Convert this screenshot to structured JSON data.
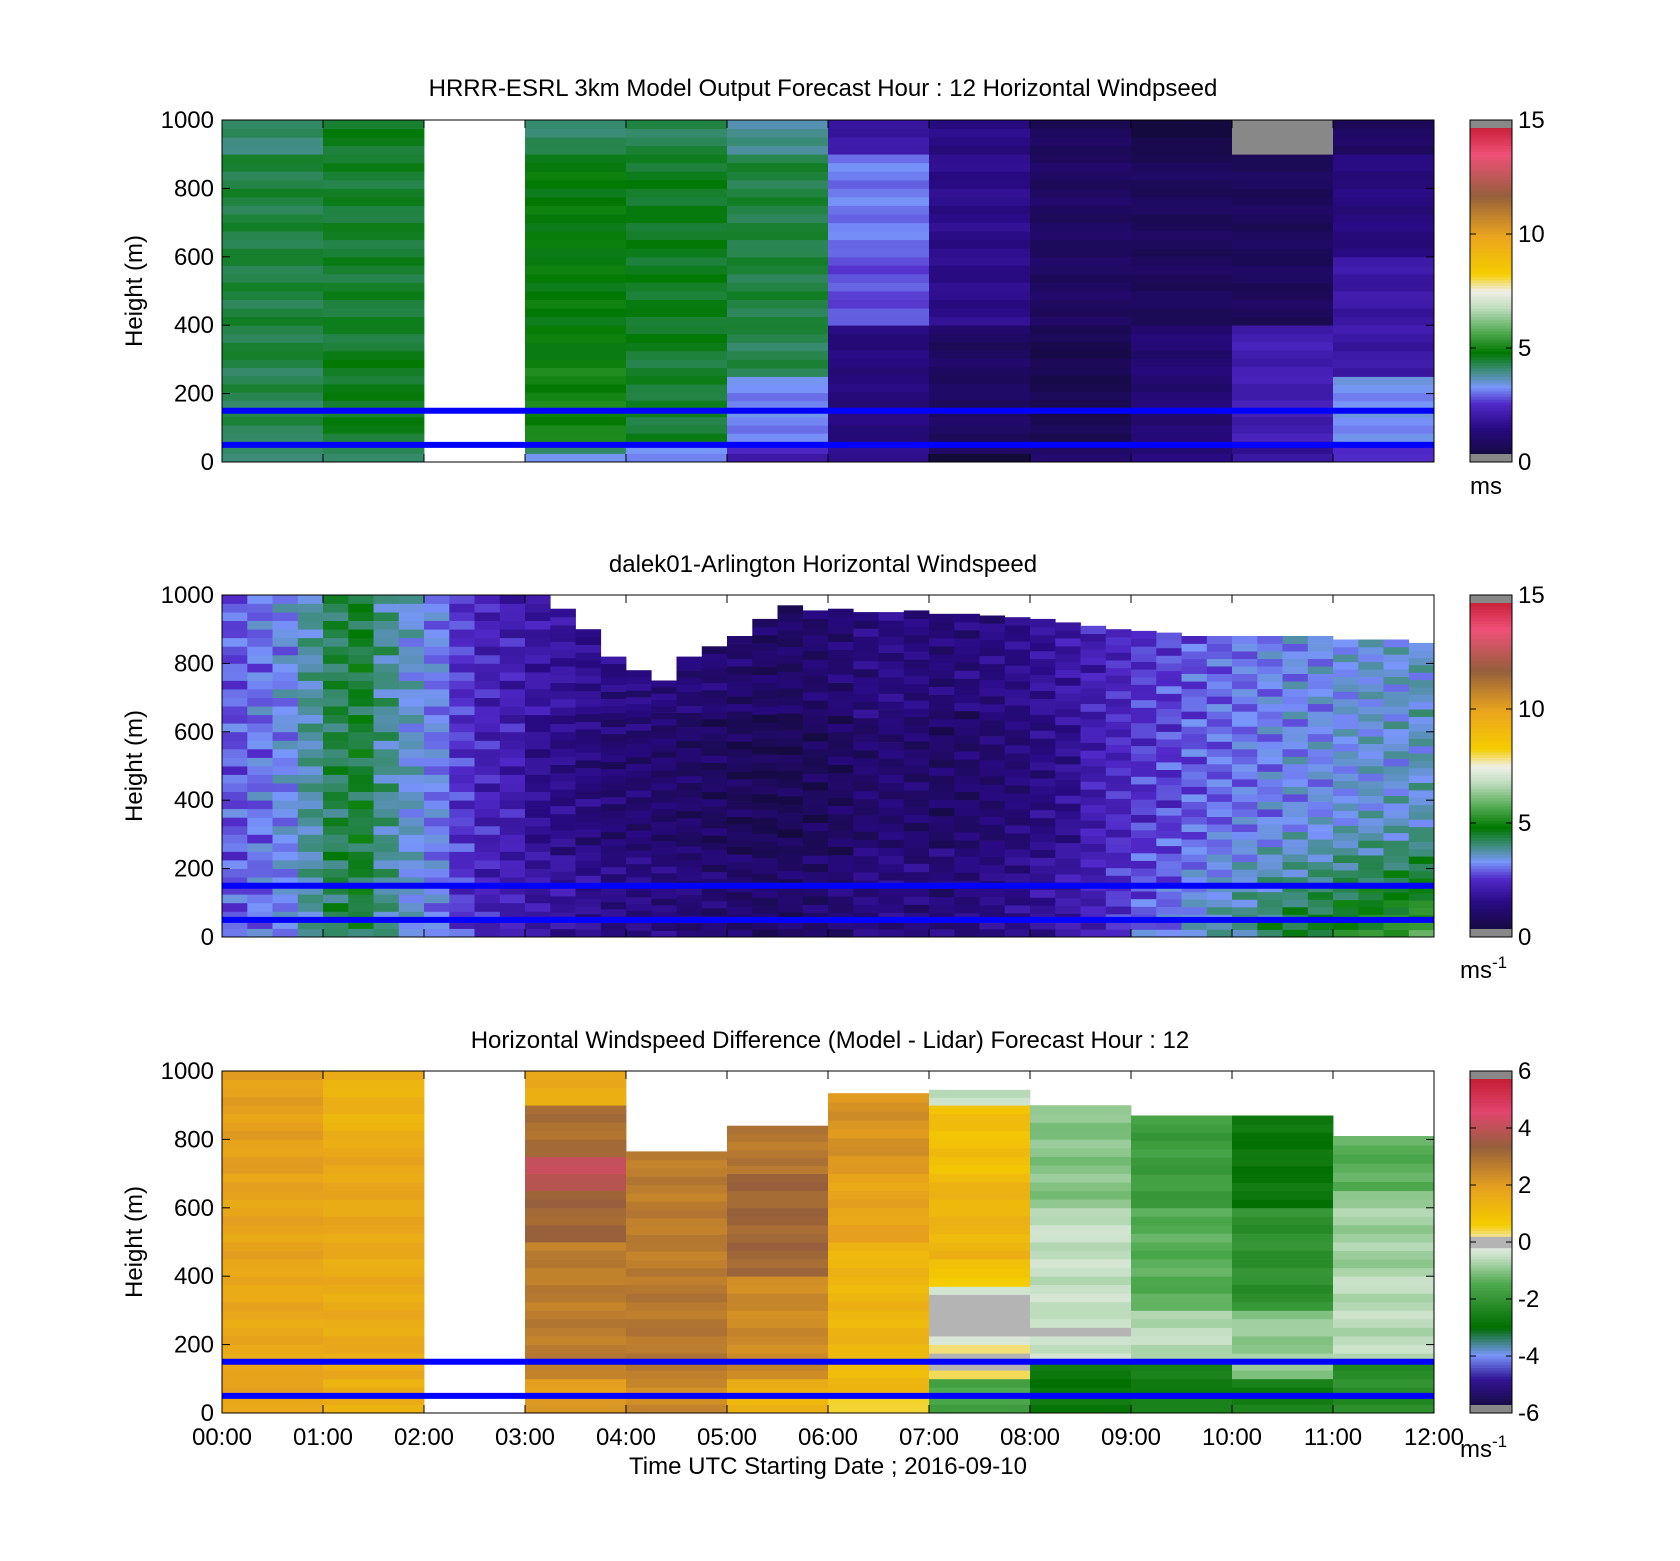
{
  "chart_data": [
    {
      "type": "heatmap",
      "title": "HRRR-ESRL 3km Model Output   Forecast Hour : 12 Horizontal Windpseed",
      "xlabel": "",
      "ylabel": "Height (m)",
      "xlim": [
        0,
        12
      ],
      "ylim": [
        0,
        1000
      ],
      "yticks": [
        "0",
        "200",
        "400",
        "600",
        "800",
        "1000"
      ],
      "x_tick_labels": [],
      "colorbar": {
        "ticks": [
          "0",
          "5",
          "10",
          "15"
        ],
        "min": 0,
        "max": 15,
        "unit": "ms"
      },
      "reference_lines_m": [
        150,
        50
      ],
      "reference_line_color": "#0000ff",
      "segments": [
        {
          "x0": 0,
          "x1": 1,
          "cells": [
            [
              25,
              4.2
            ],
            [
              60,
              4.0
            ],
            [
              300,
              4.3
            ],
            [
              900,
              4.4
            ],
            [
              1000,
              4.1
            ]
          ]
        },
        {
          "x0": 1,
          "x1": 2,
          "cells": [
            [
              25,
              4.3
            ],
            [
              60,
              4.1
            ],
            [
              300,
              4.6
            ],
            [
              900,
              4.5
            ],
            [
              1000,
              4.6
            ]
          ]
        },
        {
          "x0": 2,
          "x1": 3,
          "cells": []
        },
        {
          "x0": 3,
          "x1": 4,
          "cells": [
            [
              25,
              3.2
            ],
            [
              60,
              4.3
            ],
            [
              300,
              5.0
            ],
            [
              900,
              4.8
            ],
            [
              1000,
              4.2
            ]
          ]
        },
        {
          "x0": 4,
          "x1": 5,
          "cells": [
            [
              25,
              3.0
            ],
            [
              60,
              3.5
            ],
            [
              300,
              4.5
            ],
            [
              900,
              4.6
            ],
            [
              1000,
              4.3
            ]
          ]
        },
        {
          "x0": 5,
          "x1": 6,
          "cells": [
            [
              25,
              2.0
            ],
            [
              60,
              2.5
            ],
            [
              250,
              3.2
            ],
            [
              400,
              4.3
            ],
            [
              900,
              4.4
            ],
            [
              1000,
              3.9
            ]
          ]
        },
        {
          "x0": 6,
          "x1": 7,
          "cells": [
            [
              25,
              1.8
            ],
            [
              60,
              1.6
            ],
            [
              400,
              1.4
            ],
            [
              600,
              2.8
            ],
            [
              900,
              3.1
            ],
            [
              1000,
              2.0
            ]
          ]
        },
        {
          "x0": 7,
          "x1": 8,
          "cells": [
            [
              25,
              0.3
            ],
            [
              60,
              0.8
            ],
            [
              400,
              0.9
            ],
            [
              900,
              1.6
            ],
            [
              1000,
              1.5
            ]
          ]
        },
        {
          "x0": 8,
          "x1": 9,
          "cells": [
            [
              25,
              1.2
            ],
            [
              60,
              0.9
            ],
            [
              400,
              0.6
            ],
            [
              900,
              0.9
            ],
            [
              1000,
              0.8
            ]
          ]
        },
        {
          "x0": 9,
          "x1": 10,
          "cells": [
            [
              25,
              1.4
            ],
            [
              60,
              1.3
            ],
            [
              400,
              1.2
            ],
            [
              900,
              0.8
            ],
            [
              1000,
              0.4
            ]
          ]
        },
        {
          "x0": 10,
          "x1": 11,
          "cells": [
            [
              25,
              1.8
            ],
            [
              60,
              1.9
            ],
            [
              400,
              2.2
            ],
            [
              900,
              0.8
            ],
            [
              1000,
              15.5
            ]
          ]
        },
        {
          "x0": 11,
          "x1": 12,
          "cells": [
            [
              25,
              2.5
            ],
            [
              60,
              2.6
            ],
            [
              250,
              3.3
            ],
            [
              600,
              2.0
            ],
            [
              900,
              1.4
            ],
            [
              1000,
              0.9
            ]
          ]
        }
      ]
    },
    {
      "type": "heatmap",
      "title": "dalek01-Arlington  Horizontal Windspeed",
      "xlabel": "",
      "ylabel": "Height (m)",
      "xlim": [
        0,
        12
      ],
      "ylim": [
        0,
        1000
      ],
      "yticks": [
        "0",
        "200",
        "400",
        "600",
        "800",
        "1000"
      ],
      "x_tick_labels": [],
      "colorbar": {
        "ticks": [
          "0",
          "5",
          "10",
          "15"
        ],
        "min": 0,
        "max": 15,
        "unit": "ms",
        "unit_sup": "-1"
      },
      "reference_lines_m": [
        150,
        50
      ],
      "reference_line_color": "#0000ff",
      "columns": [
        {
          "x": 0.125,
          "top": 1000,
          "v": 2.9
        },
        {
          "x": 0.375,
          "top": 1000,
          "v": 3.1
        },
        {
          "x": 0.625,
          "top": 1000,
          "v": 3.3
        },
        {
          "x": 0.875,
          "top": 1000,
          "v": 3.8
        },
        {
          "x": 1.125,
          "top": 1000,
          "v": 4.3
        },
        {
          "x": 1.375,
          "top": 1000,
          "v": 4.5
        },
        {
          "x": 1.625,
          "top": 1000,
          "v": 3.9
        },
        {
          "x": 1.875,
          "top": 1000,
          "v": 3.5
        },
        {
          "x": 2.125,
          "top": 1000,
          "v": 3.2
        },
        {
          "x": 2.375,
          "top": 1000,
          "v": 2.6
        },
        {
          "x": 2.625,
          "top": 1000,
          "v": 2.3
        },
        {
          "x": 2.875,
          "top": 1000,
          "v": 2.2
        },
        {
          "x": 3.125,
          "top": 1000,
          "v": 2.0
        },
        {
          "x": 3.375,
          "top": 960,
          "v": 1.9
        },
        {
          "x": 3.625,
          "top": 900,
          "v": 1.7
        },
        {
          "x": 3.875,
          "top": 820,
          "v": 1.5
        },
        {
          "x": 4.125,
          "top": 780,
          "v": 1.5
        },
        {
          "x": 4.375,
          "top": 750,
          "v": 1.4
        },
        {
          "x": 4.625,
          "top": 820,
          "v": 1.3
        },
        {
          "x": 4.875,
          "top": 850,
          "v": 1.2
        },
        {
          "x": 5.125,
          "top": 880,
          "v": 1.1
        },
        {
          "x": 5.375,
          "top": 930,
          "v": 1.0
        },
        {
          "x": 5.625,
          "top": 970,
          "v": 1.0
        },
        {
          "x": 5.875,
          "top": 955,
          "v": 1.1
        },
        {
          "x": 6.125,
          "top": 960,
          "v": 1.2
        },
        {
          "x": 6.375,
          "top": 950,
          "v": 1.4
        },
        {
          "x": 6.625,
          "top": 950,
          "v": 1.5
        },
        {
          "x": 6.875,
          "top": 955,
          "v": 1.4
        },
        {
          "x": 7.125,
          "top": 945,
          "v": 1.3
        },
        {
          "x": 7.375,
          "top": 945,
          "v": 1.4
        },
        {
          "x": 7.625,
          "top": 940,
          "v": 1.5
        },
        {
          "x": 7.875,
          "top": 935,
          "v": 1.6
        },
        {
          "x": 8.125,
          "top": 930,
          "v": 1.8
        },
        {
          "x": 8.375,
          "top": 920,
          "v": 2.0
        },
        {
          "x": 8.625,
          "top": 910,
          "v": 2.2
        },
        {
          "x": 8.875,
          "top": 900,
          "v": 2.4
        },
        {
          "x": 9.125,
          "top": 895,
          "v": 2.6
        },
        {
          "x": 9.375,
          "top": 890,
          "v": 2.7
        },
        {
          "x": 9.625,
          "top": 880,
          "v": 2.9
        },
        {
          "x": 9.875,
          "top": 880,
          "v": 3.0
        },
        {
          "x": 10.125,
          "top": 880,
          "v": 3.1
        },
        {
          "x": 10.375,
          "top": 880,
          "v": 3.2
        },
        {
          "x": 10.625,
          "top": 880,
          "v": 3.3
        },
        {
          "x": 10.875,
          "top": 880,
          "v": 3.3
        },
        {
          "x": 11.125,
          "top": 870,
          "v": 3.4
        },
        {
          "x": 11.375,
          "top": 870,
          "v": 3.5
        },
        {
          "x": 11.625,
          "top": 870,
          "v": 3.5
        },
        {
          "x": 11.875,
          "top": 860,
          "v": 3.6
        }
      ]
    },
    {
      "type": "heatmap",
      "title": "Horizontal Windspeed Difference (Model - Lidar) Forecast Hour : 12",
      "xlabel": "Time UTC  Starting Date ; 2016-09-10",
      "ylabel": "Height (m)",
      "xlim": [
        0,
        12
      ],
      "ylim": [
        0,
        1000
      ],
      "yticks": [
        "0",
        "200",
        "400",
        "600",
        "800",
        "1000"
      ],
      "x_tick_labels": [
        "00:00",
        "01:00",
        "02:00",
        "03:00",
        "04:00",
        "05:00",
        "06:00",
        "07:00",
        "08:00",
        "09:00",
        "10:00",
        "11:00",
        "12:00"
      ],
      "colorbar": {
        "ticks": [
          "-6",
          "-4",
          "-2",
          "0",
          "2",
          "4",
          "6"
        ],
        "min": -6,
        "max": 6,
        "unit": "ms",
        "unit_sup": "-1"
      },
      "reference_lines_m": [
        150,
        50
      ],
      "reference_line_color": "#0000ff",
      "segments": [
        {
          "x0": 0,
          "x1": 1,
          "top": 1000,
          "cells": [
            [
              100,
              1.8
            ],
            [
              400,
              1.7
            ],
            [
              700,
              1.8
            ],
            [
              1000,
              1.9
            ]
          ]
        },
        {
          "x0": 1,
          "x1": 2,
          "top": 1000,
          "cells": [
            [
              100,
              1.5
            ],
            [
              500,
              1.6
            ],
            [
              800,
              1.7
            ],
            [
              1000,
              1.4
            ]
          ]
        },
        {
          "x0": 2,
          "x1": 3,
          "top": 0,
          "cells": []
        },
        {
          "x0": 3,
          "x1": 4,
          "top": 1000,
          "cells": [
            [
              100,
              2.0
            ],
            [
              500,
              2.7
            ],
            [
              650,
              3.2
            ],
            [
              750,
              4.0
            ],
            [
              900,
              3.0
            ],
            [
              1000,
              1.6
            ]
          ]
        },
        {
          "x0": 4,
          "x1": 5,
          "top": 765,
          "cells": [
            [
              100,
              2.4
            ],
            [
              400,
              2.8
            ],
            [
              765,
              2.7
            ]
          ]
        },
        {
          "x0": 5,
          "x1": 6,
          "top": 840,
          "cells": [
            [
              100,
              1.4
            ],
            [
              400,
              2.4
            ],
            [
              700,
              3.2
            ],
            [
              840,
              2.8
            ]
          ]
        },
        {
          "x0": 6,
          "x1": 7,
          "top": 935,
          "cells": [
            [
              60,
              0.6
            ],
            [
              150,
              1.2
            ],
            [
              500,
              1.3
            ],
            [
              700,
              1.8
            ],
            [
              935,
              2.2
            ]
          ]
        },
        {
          "x0": 7,
          "x1": 8,
          "top": 945,
          "cells": [
            [
              100,
              -1.6
            ],
            [
              200,
              0.2
            ],
            [
              300,
              -0.1
            ],
            [
              370,
              -0.2
            ],
            [
              450,
              0.8
            ],
            [
              700,
              1.3
            ],
            [
              900,
              1.0
            ],
            [
              945,
              -0.6
            ]
          ]
        },
        {
          "x0": 8,
          "x1": 9,
          "top": 900,
          "cells": [
            [
              150,
              -2.8
            ],
            [
              300,
              -0.4
            ],
            [
              600,
              -0.5
            ],
            [
              900,
              -1.0
            ]
          ]
        },
        {
          "x0": 9,
          "x1": 10,
          "top": 870,
          "cells": [
            [
              150,
              -2.6
            ],
            [
              300,
              -0.6
            ],
            [
              600,
              -1.4
            ],
            [
              870,
              -1.8
            ]
          ]
        },
        {
          "x0": 10,
          "x1": 11,
          "top": 870,
          "cells": [
            [
              100,
              -2.6
            ],
            [
              300,
              -0.9
            ],
            [
              600,
              -2.1
            ],
            [
              870,
              -2.8
            ]
          ]
        },
        {
          "x0": 11,
          "x1": 12,
          "top": 810,
          "cells": [
            [
              150,
              -2.2
            ],
            [
              400,
              -0.6
            ],
            [
              650,
              -0.8
            ],
            [
              810,
              -1.4
            ]
          ]
        }
      ]
    }
  ]
}
